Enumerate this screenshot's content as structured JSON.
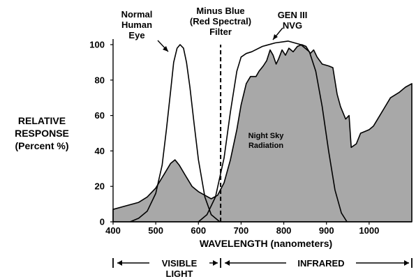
{
  "chart_data": {
    "type": "line",
    "title": "",
    "ylabel": [
      "RELATIVE",
      "RESPONSE",
      "(Percent %)"
    ],
    "xlabel": "WAVELENGTH (nanometers)",
    "xlim": [
      400,
      1100
    ],
    "ylim": [
      0,
      100
    ],
    "xticks": [
      400,
      500,
      600,
      700,
      800,
      900,
      1000
    ],
    "yticks": [
      0,
      20,
      40,
      60,
      80,
      100
    ],
    "grid": false,
    "series": [
      {
        "name": "Night Sky Radiation",
        "style": "filled",
        "color": "#a8a8a8",
        "x": [
          400,
          430,
          460,
          480,
          500,
          520,
          535,
          545,
          555,
          570,
          585,
          600,
          615,
          630,
          645,
          660,
          675,
          690,
          700,
          712,
          722,
          735,
          742,
          752,
          760,
          768,
          775,
          782,
          788,
          796,
          804,
          812,
          822,
          832,
          842,
          852,
          862,
          870,
          878,
          890,
          905,
          915,
          925,
          933,
          945,
          953,
          958,
          964,
          970,
          980,
          990,
          1000,
          1010,
          1020,
          1035,
          1050,
          1070,
          1085,
          1100
        ],
        "y": [
          7,
          9,
          11,
          14,
          19,
          27,
          33,
          35,
          32,
          26,
          20,
          17,
          15,
          13,
          15,
          22,
          35,
          52,
          66,
          78,
          82,
          82,
          85,
          88,
          91,
          97,
          94,
          89,
          92,
          97,
          94,
          98,
          96,
          99,
          100,
          99,
          95,
          97,
          93,
          89,
          88,
          87,
          72,
          65,
          58,
          60,
          42,
          43,
          44,
          50,
          51,
          52,
          54,
          58,
          64,
          70,
          73,
          76,
          78
        ]
      },
      {
        "name": "Normal Human Eye",
        "style": "line",
        "color": "#000000",
        "x": [
          440,
          460,
          480,
          500,
          515,
          525,
          535,
          542,
          550,
          557,
          565,
          572,
          580,
          590,
          600,
          615,
          630,
          650
        ],
        "y": [
          0,
          2,
          6,
          16,
          32,
          52,
          74,
          90,
          98,
          100,
          98,
          90,
          76,
          55,
          35,
          14,
          4,
          0
        ]
      },
      {
        "name": "GEN III NVG",
        "style": "line",
        "color": "#000000",
        "x": [
          600,
          620,
          640,
          660,
          675,
          690,
          700,
          712,
          725,
          750,
          780,
          810,
          840,
          860,
          875,
          890,
          905,
          920,
          935,
          948
        ],
        "y": [
          0,
          4,
          14,
          36,
          62,
          85,
          93,
          95,
          96,
          99,
          101,
          102,
          100,
          96,
          85,
          65,
          40,
          18,
          5,
          0
        ]
      },
      {
        "name": "Minus Blue (Red Spectral) Filter",
        "style": "dashed",
        "color": "#000000",
        "x": [
          652,
          652
        ],
        "y": [
          0,
          100
        ]
      }
    ],
    "annotations": [
      {
        "text": [
          "Normal",
          "Human",
          "Eye"
        ],
        "target_series": "Normal Human Eye"
      },
      {
        "text": [
          "Minus Blue",
          "(Red Spectral)",
          "Filter"
        ],
        "target_series": "Minus Blue (Red Spectral) Filter"
      },
      {
        "text": [
          "GEN III",
          "NVG"
        ],
        "target_series": "GEN III NVG"
      },
      {
        "text": [
          "Night Sky",
          "Radiation"
        ],
        "target_series": "Night Sky Radiation"
      }
    ],
    "regions": [
      {
        "label": [
          "VISIBLE",
          "LIGHT"
        ],
        "range": [
          400,
          652
        ]
      },
      {
        "label": [
          "INFRARED"
        ],
        "range": [
          652,
          1100
        ]
      }
    ]
  }
}
